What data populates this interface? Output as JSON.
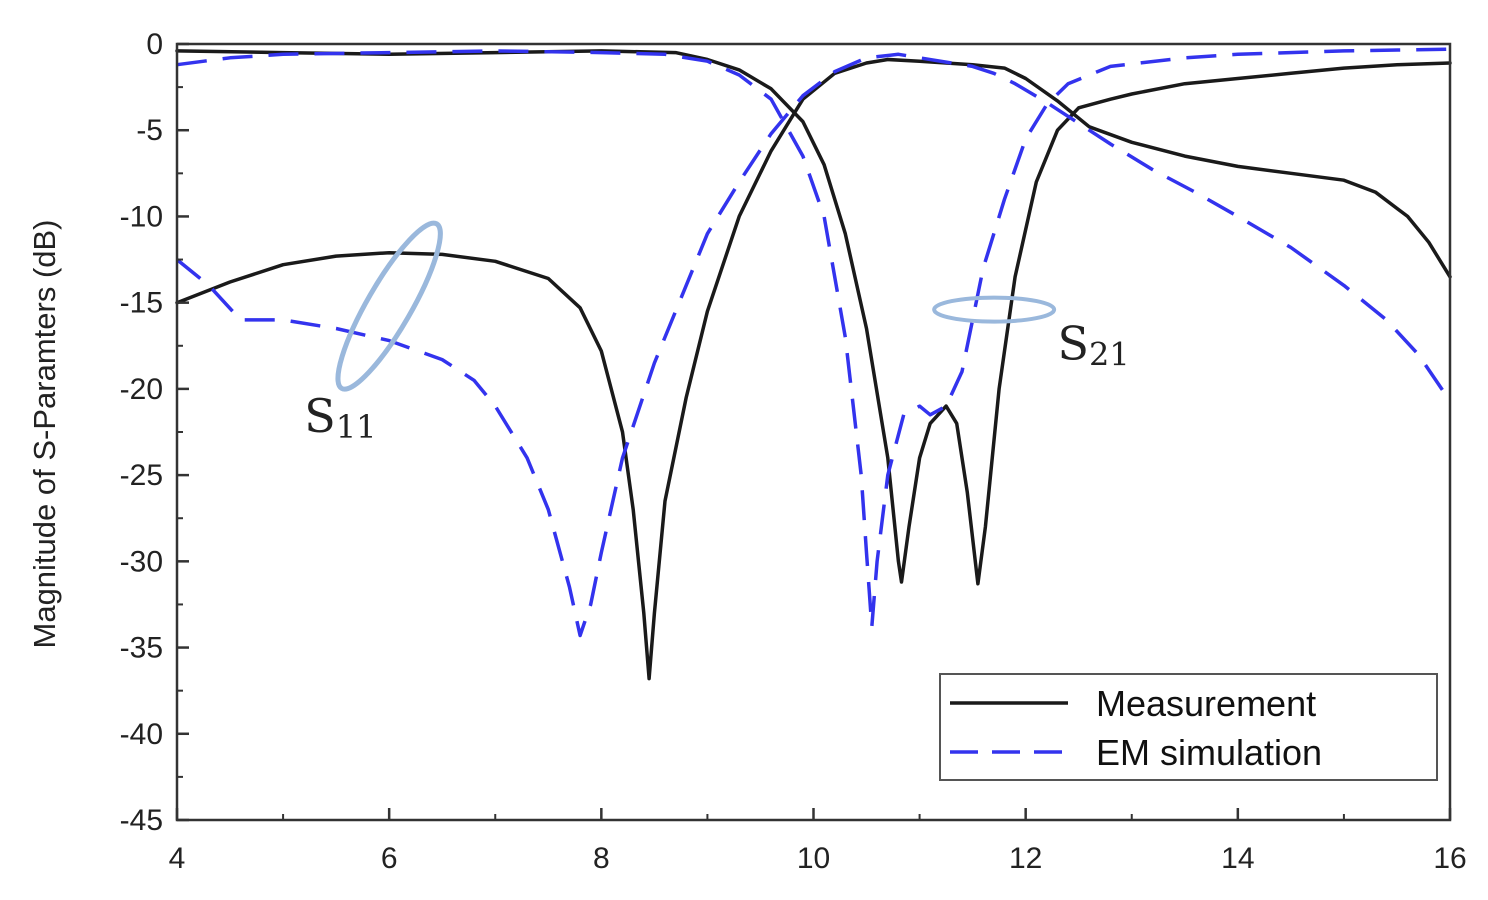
{
  "chart_data": {
    "type": "line",
    "title": "",
    "xlabel": "",
    "ylabel": "Magnitude of S-Paramters (dB)",
    "xlim": [
      4,
      16
    ],
    "ylim": [
      -45,
      0
    ],
    "x_ticks": [
      4,
      6,
      8,
      10,
      12,
      14,
      16
    ],
    "y_ticks": [
      0,
      -5,
      -10,
      -15,
      -20,
      -25,
      -30,
      -35,
      -40,
      -45
    ],
    "grid": false,
    "legend_placement": "bottom-right",
    "legend": [
      "Measurement",
      "EM simulation"
    ],
    "annotations": [
      {
        "label": "S",
        "subscript": "11",
        "x": 5.2,
        "y": -22.5,
        "target_x": 6.0,
        "target_y": -15.2
      },
      {
        "label": "S",
        "subscript": "21",
        "x": 12.3,
        "y": -18.3,
        "target_x": 11.75,
        "target_y": -15.4
      }
    ],
    "series": [
      {
        "name": "Measurement",
        "curve": "S11",
        "color": "#1a1a1a",
        "style": "solid",
        "points": [
          [
            4.0,
            -15.0
          ],
          [
            4.5,
            -13.8
          ],
          [
            5.0,
            -12.8
          ],
          [
            5.5,
            -12.3
          ],
          [
            6.0,
            -12.1
          ],
          [
            6.5,
            -12.2
          ],
          [
            7.0,
            -12.6
          ],
          [
            7.5,
            -13.6
          ],
          [
            7.8,
            -15.3
          ],
          [
            8.0,
            -17.8
          ],
          [
            8.2,
            -22.5
          ],
          [
            8.3,
            -27.0
          ],
          [
            8.4,
            -33.0
          ],
          [
            8.45,
            -36.8
          ],
          [
            8.5,
            -33.0
          ],
          [
            8.6,
            -26.5
          ],
          [
            8.8,
            -20.5
          ],
          [
            9.0,
            -15.5
          ],
          [
            9.3,
            -10.0
          ],
          [
            9.6,
            -6.2
          ],
          [
            9.9,
            -3.2
          ],
          [
            10.2,
            -1.7
          ],
          [
            10.5,
            -1.1
          ],
          [
            10.7,
            -0.9
          ],
          [
            11.0,
            -1.0
          ],
          [
            11.5,
            -1.2
          ],
          [
            11.8,
            -1.4
          ],
          [
            12.0,
            -2.0
          ],
          [
            12.3,
            -3.3
          ],
          [
            12.6,
            -4.8
          ],
          [
            13.0,
            -5.7
          ],
          [
            13.5,
            -6.5
          ],
          [
            14.0,
            -7.1
          ],
          [
            14.5,
            -7.5
          ],
          [
            15.0,
            -7.9
          ],
          [
            15.3,
            -8.6
          ],
          [
            15.6,
            -10.0
          ],
          [
            15.8,
            -11.5
          ],
          [
            16.0,
            -13.5
          ]
        ]
      },
      {
        "name": "Measurement",
        "curve": "S21",
        "color": "#1a1a1a",
        "style": "solid",
        "points": [
          [
            4.0,
            -0.4
          ],
          [
            5.0,
            -0.5
          ],
          [
            6.0,
            -0.6
          ],
          [
            7.0,
            -0.5
          ],
          [
            8.0,
            -0.4
          ],
          [
            8.7,
            -0.5
          ],
          [
            9.0,
            -0.9
          ],
          [
            9.3,
            -1.5
          ],
          [
            9.6,
            -2.6
          ],
          [
            9.9,
            -4.5
          ],
          [
            10.1,
            -7.0
          ],
          [
            10.3,
            -11.0
          ],
          [
            10.5,
            -16.5
          ],
          [
            10.7,
            -24.0
          ],
          [
            10.8,
            -30.0
          ],
          [
            10.83,
            -31.2
          ],
          [
            10.9,
            -28.0
          ],
          [
            11.0,
            -24.0
          ],
          [
            11.1,
            -22.0
          ],
          [
            11.25,
            -21.0
          ],
          [
            11.35,
            -22.0
          ],
          [
            11.45,
            -26.0
          ],
          [
            11.55,
            -31.3
          ],
          [
            11.62,
            -28.0
          ],
          [
            11.75,
            -20.0
          ],
          [
            11.9,
            -13.5
          ],
          [
            12.1,
            -8.0
          ],
          [
            12.3,
            -5.0
          ],
          [
            12.5,
            -3.7
          ],
          [
            12.8,
            -3.2
          ],
          [
            13.0,
            -2.9
          ],
          [
            13.5,
            -2.3
          ],
          [
            14.0,
            -2.0
          ],
          [
            14.5,
            -1.7
          ],
          [
            15.0,
            -1.4
          ],
          [
            15.5,
            -1.2
          ],
          [
            16.0,
            -1.1
          ]
        ]
      },
      {
        "name": "EM simulation",
        "curve": "S11",
        "color": "#3333ee",
        "style": "dashed",
        "points": [
          [
            4.0,
            -12.5
          ],
          [
            4.3,
            -14.0
          ],
          [
            4.6,
            -16.0
          ],
          [
            5.0,
            -16.0
          ],
          [
            5.5,
            -16.5
          ],
          [
            6.0,
            -17.2
          ],
          [
            6.5,
            -18.3
          ],
          [
            6.8,
            -19.5
          ],
          [
            7.0,
            -21.0
          ],
          [
            7.3,
            -24.0
          ],
          [
            7.5,
            -27.0
          ],
          [
            7.7,
            -31.5
          ],
          [
            7.8,
            -34.3
          ],
          [
            7.9,
            -32.5
          ],
          [
            8.0,
            -29.5
          ],
          [
            8.2,
            -24.0
          ],
          [
            8.5,
            -18.5
          ],
          [
            8.8,
            -14.0
          ],
          [
            9.0,
            -11.0
          ],
          [
            9.3,
            -8.0
          ],
          [
            9.6,
            -5.2
          ],
          [
            9.9,
            -3.0
          ],
          [
            10.2,
            -1.6
          ],
          [
            10.5,
            -0.8
          ],
          [
            10.8,
            -0.6
          ],
          [
            11.0,
            -0.8
          ],
          [
            11.5,
            -1.3
          ],
          [
            11.7,
            -1.7
          ],
          [
            11.9,
            -2.3
          ],
          [
            12.2,
            -3.4
          ],
          [
            12.5,
            -4.6
          ],
          [
            12.8,
            -5.8
          ],
          [
            13.2,
            -7.3
          ],
          [
            13.6,
            -8.6
          ],
          [
            14.0,
            -10.0
          ],
          [
            14.5,
            -11.8
          ],
          [
            15.0,
            -14.0
          ],
          [
            15.4,
            -16.0
          ],
          [
            15.7,
            -18.0
          ],
          [
            16.0,
            -20.7
          ]
        ]
      },
      {
        "name": "EM simulation",
        "curve": "S21",
        "color": "#3333ee",
        "style": "dashed",
        "points": [
          [
            4.0,
            -1.2
          ],
          [
            4.5,
            -0.8
          ],
          [
            5.0,
            -0.6
          ],
          [
            6.0,
            -0.5
          ],
          [
            7.0,
            -0.4
          ],
          [
            8.0,
            -0.5
          ],
          [
            8.6,
            -0.6
          ],
          [
            9.0,
            -1.0
          ],
          [
            9.3,
            -1.8
          ],
          [
            9.6,
            -3.2
          ],
          [
            9.9,
            -6.5
          ],
          [
            10.1,
            -10.0
          ],
          [
            10.3,
            -17.0
          ],
          [
            10.45,
            -25.0
          ],
          [
            10.5,
            -29.5
          ],
          [
            10.55,
            -33.8
          ],
          [
            10.6,
            -30.0
          ],
          [
            10.7,
            -25.0
          ],
          [
            10.85,
            -21.5
          ],
          [
            11.0,
            -21.0
          ],
          [
            11.1,
            -21.5
          ],
          [
            11.25,
            -21.0
          ],
          [
            11.4,
            -19.0
          ],
          [
            11.5,
            -16.0
          ],
          [
            11.6,
            -13.0
          ],
          [
            11.8,
            -9.0
          ],
          [
            12.0,
            -5.5
          ],
          [
            12.2,
            -3.5
          ],
          [
            12.4,
            -2.3
          ],
          [
            12.8,
            -1.3
          ],
          [
            13.5,
            -0.8
          ],
          [
            14.0,
            -0.6
          ],
          [
            15.0,
            -0.4
          ],
          [
            16.0,
            -0.3
          ]
        ]
      }
    ]
  }
}
